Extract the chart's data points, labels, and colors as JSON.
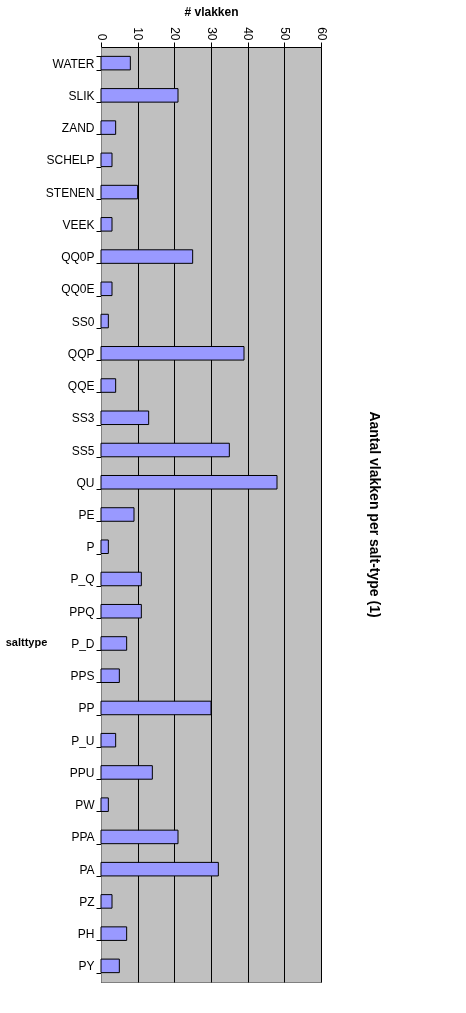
{
  "chart_data": {
    "type": "bar",
    "orientation": "horizontal",
    "title": "Aantal vlakken per salt-type (1)",
    "xlabel": "# vlakken",
    "ylabel": "salttype",
    "categories": [
      "WATER",
      "SLIK",
      "ZAND",
      "SCHELP",
      "STENEN",
      "VEEK",
      "QQ0P",
      "QQ0E",
      "SS0",
      "QQP",
      "QQE",
      "SS3",
      "SS5",
      "QU",
      "PE",
      "P",
      "P_Q",
      "PPQ",
      "P_D",
      "PPS",
      "PP",
      "P_U",
      "PPU",
      "PW",
      "PPA",
      "PA",
      "PZ",
      "PH",
      "PY"
    ],
    "values": [
      8,
      21,
      4,
      3,
      10,
      3,
      25,
      3,
      2,
      39,
      4,
      13,
      35,
      48,
      9,
      2,
      11,
      11,
      7,
      5,
      30,
      4,
      14,
      2,
      21,
      32,
      3,
      7,
      5
    ],
    "color": "#9999ff",
    "xlim": [
      0,
      60
    ],
    "xticks": [
      0,
      10,
      20,
      30,
      40,
      50,
      60
    ],
    "grid": "x"
  }
}
